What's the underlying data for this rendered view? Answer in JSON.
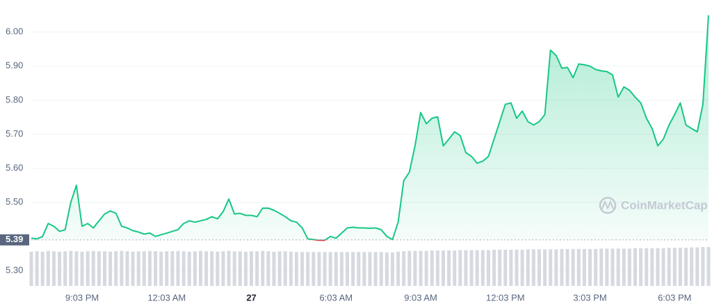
{
  "chart_data": {
    "type": "line",
    "watermark": "CoinMarketCap",
    "categories": [
      null,
      null,
      null,
      null,
      null,
      null,
      null,
      null,
      null,
      "9:03 PM",
      null,
      null,
      null,
      null,
      null,
      null,
      null,
      null,
      null,
      null,
      null,
      null,
      null,
      null,
      "12:03 AM",
      null,
      null,
      null,
      null,
      null,
      null,
      null,
      null,
      null,
      null,
      null,
      null,
      null,
      null,
      "27",
      null,
      null,
      null,
      null,
      null,
      null,
      null,
      null,
      null,
      null,
      null,
      null,
      null,
      null,
      "6:03 AM",
      null,
      null,
      null,
      null,
      null,
      null,
      null,
      null,
      null,
      null,
      null,
      null,
      null,
      null,
      "9:03 AM",
      null,
      null,
      null,
      null,
      null,
      null,
      null,
      null,
      null,
      null,
      null,
      null,
      null,
      null,
      "12:03 PM",
      null,
      null,
      null,
      null,
      null,
      null,
      null,
      null,
      null,
      null,
      null,
      null,
      null,
      null,
      "3:03 PM",
      null,
      null,
      null,
      null,
      null,
      null,
      null,
      null,
      null,
      null,
      null,
      null,
      null,
      null,
      "6:03 PM",
      null,
      null,
      null,
      null,
      null,
      null
    ],
    "values": [
      5.395,
      5.393,
      5.4,
      5.438,
      5.43,
      5.415,
      5.42,
      5.5,
      5.55,
      5.43,
      5.438,
      5.425,
      5.446,
      5.466,
      5.475,
      5.468,
      5.43,
      5.425,
      5.417,
      5.413,
      5.407,
      5.41,
      5.4,
      5.405,
      5.41,
      5.415,
      5.42,
      5.438,
      5.446,
      5.442,
      5.446,
      5.45,
      5.458,
      5.452,
      5.473,
      5.51,
      5.466,
      5.468,
      5.462,
      5.462,
      5.458,
      5.483,
      5.483,
      5.477,
      5.468,
      5.458,
      5.446,
      5.442,
      5.425,
      5.393,
      5.391,
      5.389,
      5.389,
      5.4,
      5.395,
      5.41,
      5.425,
      5.427,
      5.425,
      5.425,
      5.424,
      5.425,
      5.42,
      5.4,
      5.391,
      5.442,
      5.564,
      5.589,
      5.666,
      5.764,
      5.731,
      5.747,
      5.751,
      5.666,
      5.686,
      5.707,
      5.696,
      5.646,
      5.635,
      5.615,
      5.621,
      5.635,
      5.686,
      5.737,
      5.788,
      5.792,
      5.747,
      5.768,
      5.737,
      5.727,
      5.737,
      5.758,
      5.947,
      5.931,
      5.894,
      5.896,
      5.866,
      5.906,
      5.904,
      5.9,
      5.89,
      5.886,
      5.884,
      5.874,
      5.809,
      5.839,
      5.829,
      5.809,
      5.792,
      5.747,
      5.717,
      5.666,
      5.686,
      5.727,
      5.758,
      5.792,
      5.727,
      5.717,
      5.707,
      5.788,
      6.049
    ],
    "volume": [
      0.88,
      0.89,
      0.88,
      0.9,
      0.89,
      0.88,
      0.89,
      0.9,
      0.89,
      0.88,
      0.89,
      0.9,
      0.89,
      0.89,
      0.88,
      0.89,
      0.9,
      0.89,
      0.88,
      0.89,
      0.89,
      0.9,
      0.89,
      0.88,
      0.89,
      0.89,
      0.9,
      0.89,
      0.88,
      0.89,
      0.9,
      0.89,
      0.89,
      0.88,
      0.89,
      0.9,
      0.89,
      0.89,
      0.88,
      0.89,
      0.89,
      0.9,
      0.89,
      0.88,
      0.89,
      0.89,
      0.88,
      0.87,
      0.87,
      0.87,
      0.87,
      0.87,
      0.87,
      0.87,
      0.87,
      0.87,
      0.87,
      0.87,
      0.87,
      0.87,
      0.87,
      0.87,
      0.87,
      0.86,
      0.86,
      0.88,
      0.89,
      0.9,
      0.9,
      0.9,
      0.9,
      0.91,
      0.91,
      0.91,
      0.91,
      0.91,
      0.92,
      0.92,
      0.92,
      0.92,
      0.92,
      0.92,
      0.93,
      0.93,
      0.93,
      0.93,
      0.93,
      0.93,
      0.94,
      0.94,
      0.94,
      0.94,
      0.94,
      0.94,
      0.95,
      0.95,
      0.95,
      0.95,
      0.95,
      0.95,
      0.95,
      0.96,
      0.96,
      0.96,
      0.96,
      0.96,
      0.96,
      0.97,
      0.97,
      0.97,
      0.97,
      0.97,
      0.97,
      0.98,
      0.98,
      0.98,
      0.98,
      0.99,
      0.99,
      1.0,
      1.0
    ],
    "baseline": {
      "value": 5.39,
      "label": "5.39"
    },
    "color_up": "#16c784",
    "color_down": "#ea3943",
    "volume_color": "#d6d9e0",
    "ylim": [
      5.255,
      6.094
    ],
    "yticks": [
      {
        "value": 5.3,
        "label": "5.30"
      },
      {
        "value": 5.5,
        "label": "5.50"
      },
      {
        "value": 5.6,
        "label": "5.60"
      },
      {
        "value": 5.7,
        "label": "5.70"
      },
      {
        "value": 5.8,
        "label": "5.80"
      },
      {
        "value": 5.9,
        "label": "5.90"
      },
      {
        "value": 6.0,
        "label": "6.00"
      }
    ],
    "grid": true
  }
}
